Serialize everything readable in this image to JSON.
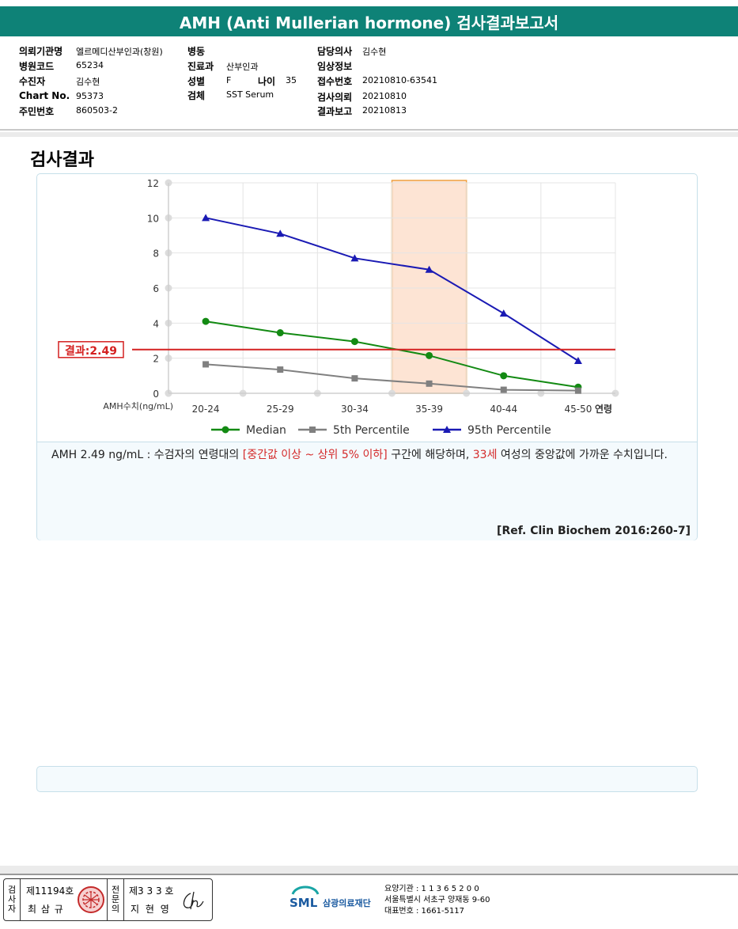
{
  "title": "AMH (Anti Mullerian hormone) 검사결과보고서",
  "info": {
    "hospital_label": "의뢰기관명",
    "hospital": "엘르메디산부인과(창원)",
    "code_label": "병원코드",
    "code": "65234",
    "patient_label": "수진자",
    "patient": "김수현",
    "chart_label": "Chart No.",
    "chart": "95373",
    "rrn_label": "주민번호",
    "rrn": "860503-2",
    "ward_label": "병동",
    "ward": "",
    "dept_label": "진료과",
    "dept": "산부인과",
    "sex_label": "성별",
    "sex": "F",
    "age_label": "나이",
    "age": "35",
    "specimen_label": "검체",
    "specimen": "SST Serum",
    "doctor_label": "담당의사",
    "doctor": "김수현",
    "clinical_label": "임상정보",
    "clinical": "",
    "receipt_label": "접수번호",
    "receipt": "20210810-63541",
    "request_label": "검사의뢰",
    "request": "20210810",
    "report_label": "결과보고",
    "report": "20210813"
  },
  "section_title": "검사결과",
  "chart_data": {
    "type": "line",
    "categories": [
      "20-24",
      "25-29",
      "30-34",
      "35-39",
      "40-44",
      "45-50"
    ],
    "x_axis_suffix": "연령",
    "y_axis_label": "AMH수치(ng/mL)",
    "ylim": [
      0,
      12
    ],
    "yticks": [
      "0",
      "2",
      "4",
      "6",
      "8",
      "10",
      "12"
    ],
    "grid": true,
    "legend_position": "bottom",
    "series": [
      {
        "name": "Median",
        "values": [
          4.1,
          3.45,
          2.95,
          2.15,
          1.0,
          0.35
        ],
        "color": "#138a13",
        "marker": "circle"
      },
      {
        "name": "5th Percentile",
        "values": [
          1.65,
          1.35,
          0.85,
          0.55,
          0.2,
          0.15
        ],
        "color": "#808080",
        "marker": "square"
      },
      {
        "name": "95th Percentile",
        "values": [
          10.0,
          9.1,
          7.7,
          7.05,
          4.55,
          1.85
        ],
        "color": "#1a1ab4",
        "marker": "triangle"
      }
    ],
    "highlight_category": "35-39",
    "highlight_color": "#fde4d4",
    "result_line": {
      "value": 2.49,
      "label": "결과:2.49",
      "color": "#d42020"
    }
  },
  "comment": {
    "part1": "AMH  2.49 ng/mL : 수검자의 연령대의 ",
    "range": "[중간값 이상 ~ 상위 5% 이하]",
    "part2": "  구간에 해당하며, ",
    "age": "33세",
    "part3": " 여성의 중앙값에 가까운 수치입니다."
  },
  "reference": "[Ref. Clin Biochem 2016:260-7]",
  "footer": {
    "examiner_label": "검사자",
    "examiner_license": "제11194호",
    "examiner_name": "최 삼 규",
    "specialist_label": "전문의",
    "specialist_license": "제3 3 3 호",
    "specialist_name": "지 현 영",
    "org_short": "SML",
    "org_name": "삼광의료재단",
    "institution_no": "요양기관 : 1 1 3 6 5 2 0 0",
    "address": "서울특별시 서초구 양재동 9-60",
    "phone": "대표번호 : 1661-5117"
  }
}
